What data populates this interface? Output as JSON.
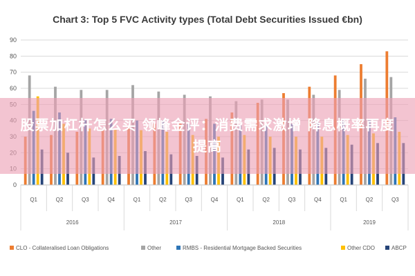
{
  "chart_data": {
    "type": "bar",
    "title": "Chart 3: Top 5 FVC Activity types (Total Debt Securities Issued €bn)",
    "xlabel": "",
    "ylabel": "",
    "ylim": [
      0,
      90
    ],
    "yticks": [
      0,
      10,
      20,
      30,
      40,
      50,
      60,
      70,
      80,
      90
    ],
    "grid": true,
    "legend_position": "bottom",
    "categories": [
      "Q1",
      "Q2",
      "Q3",
      "Q4",
      "Q1",
      "Q2",
      "Q3",
      "Q4",
      "Q1",
      "Q2",
      "Q3",
      "Q4",
      "Q1",
      "Q2",
      "Q3"
    ],
    "groups": [
      {
        "label": "2016",
        "count": 4
      },
      {
        "label": "2017",
        "count": 4
      },
      {
        "label": "2018",
        "count": 4
      },
      {
        "label": "2019",
        "count": 3
      }
    ],
    "series": [
      {
        "name": "CLO - Collateralised Loan Obligations",
        "color": "#ed7d31",
        "values": [
          30,
          31,
          33,
          34,
          36,
          38,
          39,
          41,
          45,
          51,
          57,
          61,
          68,
          75,
          83
        ]
      },
      {
        "name": "Other",
        "color": "#a5a5a5",
        "values": [
          68,
          61,
          59,
          59,
          62,
          58,
          56,
          55,
          52,
          53,
          53,
          56,
          59,
          66,
          67
        ]
      },
      {
        "name": "RMBS - Residential Mortgage Backed Securities",
        "color": "#2e75b6",
        "values": [
          46,
          45,
          41,
          41,
          40,
          40,
          38,
          38,
          37,
          37,
          38,
          39,
          40,
          41,
          42
        ]
      },
      {
        "name": "Other CDO",
        "color": "#ffc000",
        "values": [
          55,
          38,
          35,
          35,
          34,
          33,
          31,
          30,
          31,
          30,
          30,
          30,
          31,
          32,
          33
        ]
      },
      {
        "name": "ABCP",
        "color": "#264478",
        "values": [
          22,
          20,
          17,
          18,
          21,
          19,
          18,
          17,
          22,
          23,
          22,
          23,
          25,
          26,
          26
        ]
      }
    ]
  },
  "overlay": {
    "text": "股票加杠杆怎么买 领峰金评：消费需求激增 降息概率再度提高"
  }
}
